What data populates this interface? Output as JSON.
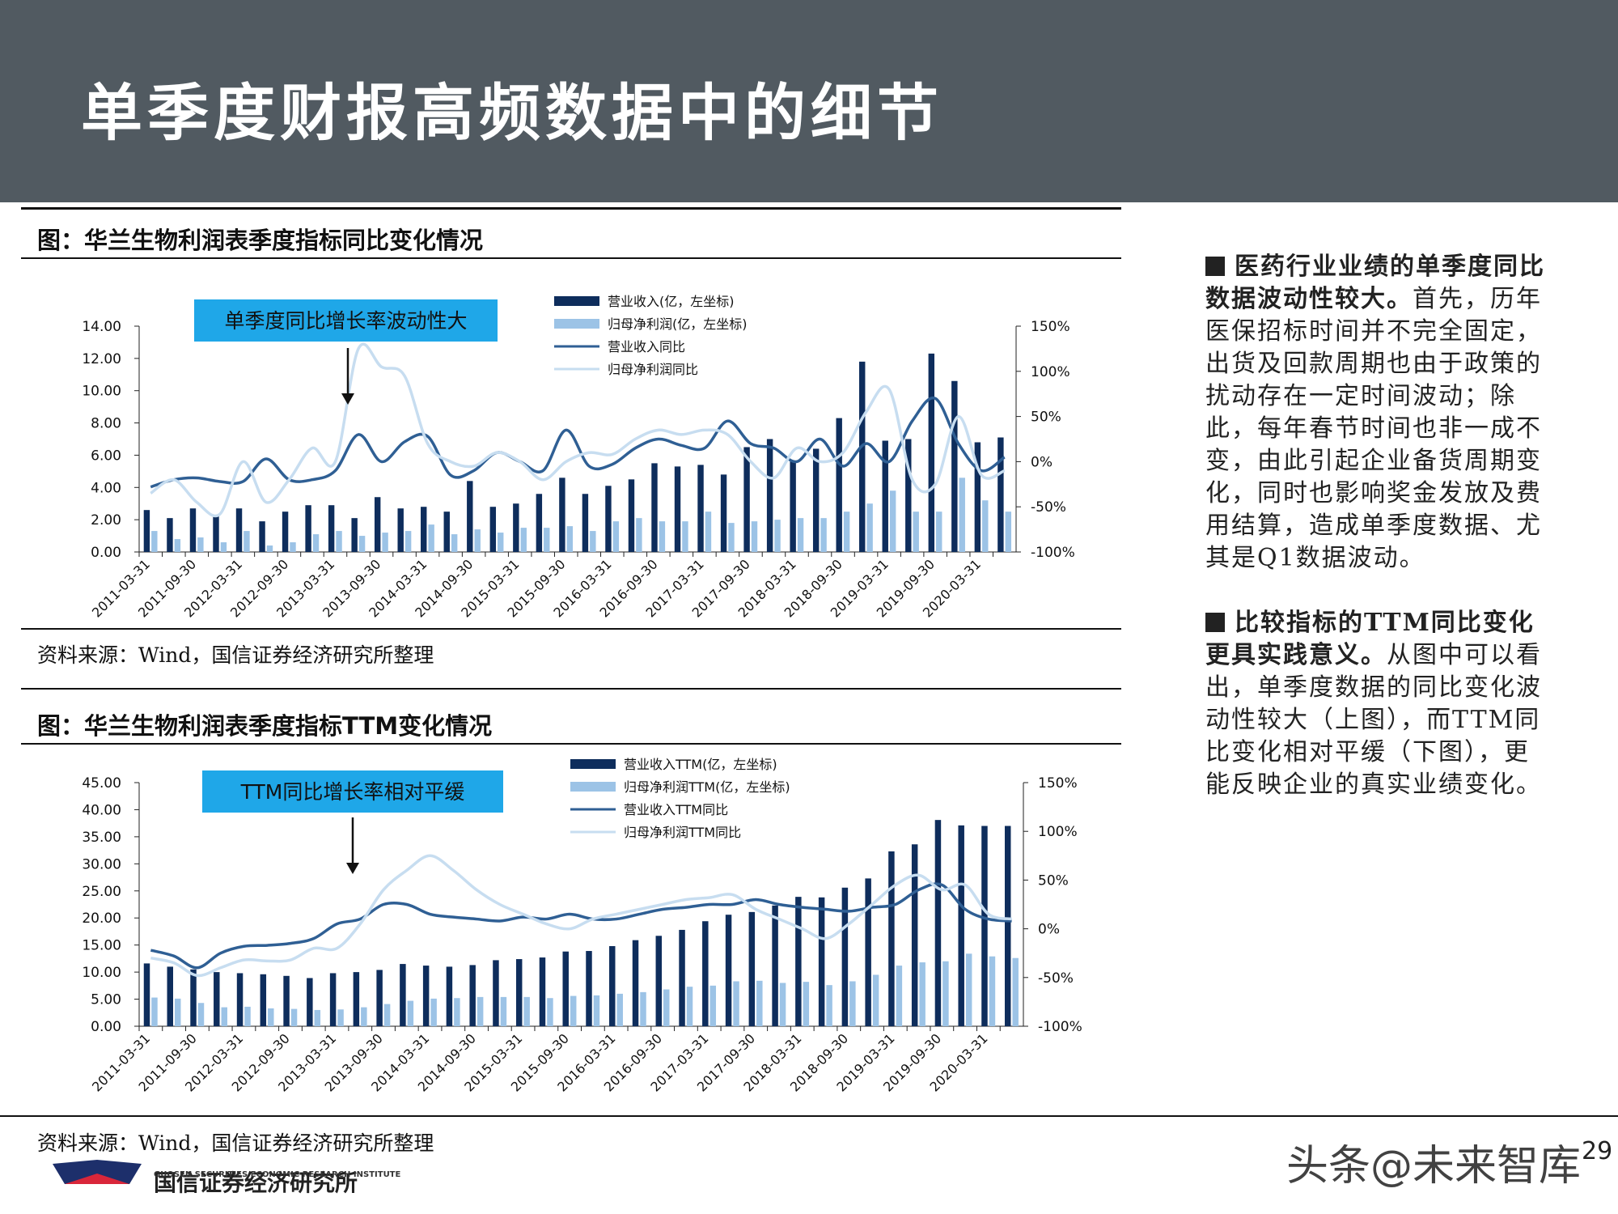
{
  "page": {
    "title": "单季度财报高频数据中的细节",
    "page_number": "29",
    "watermark": "头条@未来智库"
  },
  "footer": {
    "logo_text": "国信证券经济研究所",
    "logo_subtext": "GUOSEN SECURITIES ECONOMIC RESEARCH INSTITUTE"
  },
  "figure1": {
    "caption": "图：华兰生物利润表季度指标同比变化情况",
    "source": "资料来源：Wind，国信证券经济研究所整理",
    "callout": "单季度同比增长率波动性大"
  },
  "figure2": {
    "caption": "图：华兰生物利润表季度指标TTM变化情况",
    "source": "资料来源：Wind，国信证券经济研究所整理",
    "callout": "TTM同比增长率相对平缓"
  },
  "side": {
    "p1_bold": "医药行业业绩的单季度同比数据波动性较大。",
    "p1_text": "首先，历年医保招标时间并不完全固定，出货及回款周期也由于政策的扰动存在一定时间波动；除此，每年春节时间也非一成不变，由此引起企业备货周期变化，同时也影响奖金发放及费用结算，造成单季度数据、尤其是Q1数据波动。",
    "p2_bold": "比较指标的TTM同比变化更具实践意义。",
    "p2_text": "从图中可以看出，单季度数据的同比变化波动性较大（上图），而TTM同比变化相对平缓（下图），更能反映企业的真实业绩变化。"
  },
  "colors": {
    "header_bg": "#515a61",
    "dark_bar": "#0e2d5c",
    "light_bar": "#9cc3e6",
    "dark_line": "#2f5f94",
    "light_line": "#c7ddf0",
    "callout_bg": "#1fa7e8"
  },
  "chart_data": [
    {
      "type": "bar",
      "categories": [
        "2011-03-31",
        "2011-06-30",
        "2011-09-30",
        "2011-12-31",
        "2012-03-31",
        "2012-06-30",
        "2012-09-30",
        "2012-12-31",
        "2013-03-31",
        "2013-06-30",
        "2013-09-30",
        "2013-12-31",
        "2014-03-31",
        "2014-06-30",
        "2014-09-30",
        "2014-12-31",
        "2015-03-31",
        "2015-06-30",
        "2015-09-30",
        "2015-12-31",
        "2016-03-31",
        "2016-06-30",
        "2016-09-30",
        "2016-12-31",
        "2017-03-31",
        "2017-06-30",
        "2017-09-30",
        "2017-12-31",
        "2018-03-31",
        "2018-06-30",
        "2018-09-30",
        "2018-12-31",
        "2019-03-31",
        "2019-06-30",
        "2019-09-30",
        "2019-12-31",
        "2020-03-31",
        "2020-06-30"
      ],
      "tick_labels": [
        "2011-03-31",
        "2011-09-30",
        "2012-03-31",
        "2012-09-30",
        "2013-03-31",
        "2013-09-30",
        "2014-03-31",
        "2014-09-30",
        "2015-03-31",
        "2015-09-30",
        "2016-03-31",
        "2016-09-30",
        "2017-03-31",
        "2017-09-30",
        "2018-03-31",
        "2018-09-30",
        "2019-03-31",
        "2019-09-30",
        "2020-03-31"
      ],
      "yticks_left": [
        "14.00",
        "12.00",
        "10.00",
        "8.00",
        "6.00",
        "4.00",
        "2.00",
        "0.00"
      ],
      "yticks_right": [
        "150%",
        "100%",
        "50%",
        "0%",
        "-50%",
        "-100%"
      ],
      "ylim_left": [
        0,
        14
      ],
      "ylim_right": [
        -100,
        150
      ],
      "series": [
        {
          "name": "营业收入(亿，左坐标)",
          "kind": "bar",
          "axis": "left",
          "values": [
            2.6,
            2.1,
            2.7,
            2.3,
            2.7,
            1.9,
            2.5,
            2.9,
            2.9,
            2.1,
            3.4,
            2.7,
            2.8,
            2.5,
            4.4,
            2.8,
            3.0,
            3.6,
            4.6,
            3.6,
            4.1,
            4.5,
            5.5,
            5.3,
            5.4,
            4.8,
            6.5,
            7.0,
            5.6,
            6.4,
            8.3,
            11.8,
            6.9,
            7.0,
            12.3,
            10.6,
            6.8,
            7.1
          ]
        },
        {
          "name": "归母净利润(亿，左坐标)",
          "kind": "bar",
          "axis": "left",
          "values": [
            1.3,
            0.8,
            0.9,
            0.6,
            1.3,
            0.4,
            0.6,
            1.1,
            1.3,
            1.0,
            1.2,
            1.3,
            1.7,
            1.1,
            1.4,
            1.2,
            1.5,
            1.5,
            1.6,
            1.3,
            1.9,
            2.1,
            1.9,
            1.9,
            2.5,
            1.8,
            1.9,
            2.0,
            2.1,
            2.1,
            2.5,
            3.0,
            3.8,
            2.5,
            2.5,
            4.6,
            3.2,
            2.5
          ]
        },
        {
          "name": "营业收入同比",
          "kind": "line",
          "axis": "right",
          "values": [
            -28,
            -20,
            -18,
            -22,
            -22,
            3,
            -20,
            -20,
            -10,
            30,
            0,
            22,
            28,
            -15,
            -10,
            10,
            0,
            -10,
            35,
            -5,
            -3,
            15,
            25,
            18,
            15,
            45,
            20,
            15,
            0,
            25,
            -5,
            20,
            0,
            45,
            70,
            20,
            -10,
            5
          ]
        },
        {
          "name": "归母净利润同比",
          "kind": "line",
          "axis": "right",
          "values": [
            -35,
            -20,
            -45,
            -58,
            0,
            -45,
            -20,
            15,
            0,
            125,
            105,
            95,
            20,
            0,
            -5,
            10,
            0,
            -20,
            0,
            10,
            8,
            25,
            35,
            30,
            35,
            30,
            0,
            -18,
            15,
            0,
            10,
            55,
            80,
            -20,
            -25,
            50,
            -15,
            -10
          ]
        }
      ]
    },
    {
      "type": "bar",
      "categories": [
        "2011-03-31",
        "2011-06-30",
        "2011-09-30",
        "2011-12-31",
        "2012-03-31",
        "2012-06-30",
        "2012-09-30",
        "2012-12-31",
        "2013-03-31",
        "2013-06-30",
        "2013-09-30",
        "2013-12-31",
        "2014-03-31",
        "2014-06-30",
        "2014-09-30",
        "2014-12-31",
        "2015-03-31",
        "2015-06-30",
        "2015-09-30",
        "2015-12-31",
        "2016-03-31",
        "2016-06-30",
        "2016-09-30",
        "2016-12-31",
        "2017-03-31",
        "2017-06-30",
        "2017-09-30",
        "2017-12-31",
        "2018-03-31",
        "2018-06-30",
        "2018-09-30",
        "2018-12-31",
        "2019-03-31",
        "2019-06-30",
        "2019-09-30",
        "2019-12-31",
        "2020-03-31",
        "2020-06-30"
      ],
      "tick_labels": [
        "2011-03-31",
        "2011-09-30",
        "2012-03-31",
        "2012-09-30",
        "2013-03-31",
        "2013-09-30",
        "2014-03-31",
        "2014-09-30",
        "2015-03-31",
        "2015-09-30",
        "2016-03-31",
        "2016-09-30",
        "2017-03-31",
        "2017-09-30",
        "2018-03-31",
        "2018-09-30",
        "2019-03-31",
        "2019-09-30",
        "2020-03-31"
      ],
      "yticks_left": [
        "45.00",
        "40.00",
        "35.00",
        "30.00",
        "25.00",
        "20.00",
        "15.00",
        "10.00",
        "5.00",
        "0.00"
      ],
      "yticks_right": [
        "150%",
        "100%",
        "50%",
        "0%",
        "-50%",
        "-100%"
      ],
      "ylim_left": [
        0,
        45
      ],
      "ylim_right": [
        -100,
        150
      ],
      "series": [
        {
          "name": "营业收入TTM(亿，左坐标)",
          "kind": "bar",
          "axis": "left",
          "values": [
            11.6,
            11.0,
            10.5,
            10.0,
            9.8,
            9.6,
            9.3,
            8.9,
            9.8,
            10.0,
            10.4,
            11.5,
            11.2,
            11.0,
            11.3,
            12.2,
            12.4,
            12.7,
            13.8,
            13.9,
            14.8,
            15.9,
            16.7,
            17.8,
            19.4,
            20.6,
            21.1,
            22.3,
            23.9,
            23.8,
            25.6,
            27.3,
            32.3,
            33.6,
            38.1,
            37.1,
            37.0,
            37.0
          ]
        },
        {
          "name": "归母净利润TTM(亿，左坐标)",
          "kind": "bar",
          "axis": "left",
          "values": [
            5.3,
            5.1,
            4.3,
            3.5,
            3.6,
            3.3,
            3.2,
            3.0,
            3.1,
            3.5,
            4.1,
            4.7,
            5.1,
            5.2,
            5.4,
            5.4,
            5.4,
            5.2,
            5.6,
            5.7,
            6.0,
            6.3,
            6.8,
            7.3,
            7.5,
            8.3,
            8.4,
            8.0,
            8.2,
            7.6,
            8.3,
            9.5,
            11.2,
            11.8,
            12.0,
            13.4,
            12.9,
            12.6
          ]
        },
        {
          "name": "营业收入TTM同比",
          "kind": "line",
          "axis": "right",
          "values": [
            -22,
            -28,
            -40,
            -25,
            -18,
            -17,
            -15,
            -10,
            5,
            10,
            25,
            25,
            15,
            12,
            10,
            8,
            12,
            10,
            15,
            10,
            10,
            15,
            20,
            22,
            25,
            25,
            30,
            25,
            22,
            20,
            18,
            22,
            25,
            40,
            45,
            20,
            10,
            8
          ]
        },
        {
          "name": "归母净利润TTM同比",
          "kind": "line",
          "axis": "right",
          "values": [
            -30,
            -35,
            -48,
            -40,
            -32,
            -33,
            -32,
            -20,
            -20,
            5,
            40,
            60,
            75,
            60,
            40,
            25,
            15,
            5,
            0,
            10,
            15,
            20,
            25,
            30,
            32,
            35,
            20,
            10,
            0,
            -10,
            5,
            25,
            45,
            55,
            40,
            45,
            15,
            10
          ]
        }
      ]
    }
  ]
}
